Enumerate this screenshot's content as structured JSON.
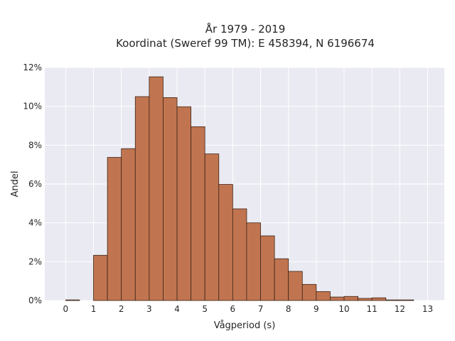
{
  "chart_data": {
    "type": "bar",
    "title_lines": [
      "År 1979 - 2019",
      "Koordinat (Sweref 99 TM): E 458394, N 6196674"
    ],
    "xlabel": "Vågperiod (s)",
    "ylabel": "Andel",
    "xlim": [
      -0.75,
      13.6
    ],
    "ylim": [
      0,
      0.12
    ],
    "xticks": [
      0,
      1,
      2,
      3,
      4,
      5,
      6,
      7,
      8,
      9,
      10,
      11,
      12,
      13
    ],
    "xtick_labels": [
      "0",
      "1",
      "2",
      "3",
      "4",
      "5",
      "6",
      "7",
      "8",
      "9",
      "10",
      "11",
      "12",
      "13"
    ],
    "yticks": [
      0,
      0.02,
      0.04,
      0.06,
      0.08,
      0.1,
      0.12
    ],
    "ytick_labels": [
      "0%",
      "2%",
      "4%",
      "6%",
      "8%",
      "10%",
      "12%"
    ],
    "grid": true,
    "bin_width": 0.5,
    "bins": [
      {
        "start": 0.0,
        "value": 0.0003
      },
      {
        "start": 0.5,
        "value": 0.0
      },
      {
        "start": 1.0,
        "value": 0.0233
      },
      {
        "start": 1.5,
        "value": 0.0737
      },
      {
        "start": 2.0,
        "value": 0.0782
      },
      {
        "start": 2.5,
        "value": 0.105
      },
      {
        "start": 3.0,
        "value": 0.1152
      },
      {
        "start": 3.5,
        "value": 0.1045
      },
      {
        "start": 4.0,
        "value": 0.0998
      },
      {
        "start": 4.5,
        "value": 0.0895
      },
      {
        "start": 5.0,
        "value": 0.0755
      },
      {
        "start": 5.5,
        "value": 0.0598
      },
      {
        "start": 6.0,
        "value": 0.0472
      },
      {
        "start": 6.5,
        "value": 0.04
      },
      {
        "start": 7.0,
        "value": 0.0333
      },
      {
        "start": 7.5,
        "value": 0.0215
      },
      {
        "start": 8.0,
        "value": 0.015
      },
      {
        "start": 8.5,
        "value": 0.0083
      },
      {
        "start": 9.0,
        "value": 0.0046
      },
      {
        "start": 9.5,
        "value": 0.0018
      },
      {
        "start": 10.0,
        "value": 0.0021
      },
      {
        "start": 10.5,
        "value": 0.0011
      },
      {
        "start": 11.0,
        "value": 0.0014
      },
      {
        "start": 11.5,
        "value": 0.0003
      },
      {
        "start": 12.0,
        "value": 0.0003
      }
    ],
    "colors": {
      "bar_fill": "#c07550",
      "bar_edge": "#3d2418",
      "plot_bg": "#eaeaf2",
      "grid": "#ffffff"
    }
  }
}
